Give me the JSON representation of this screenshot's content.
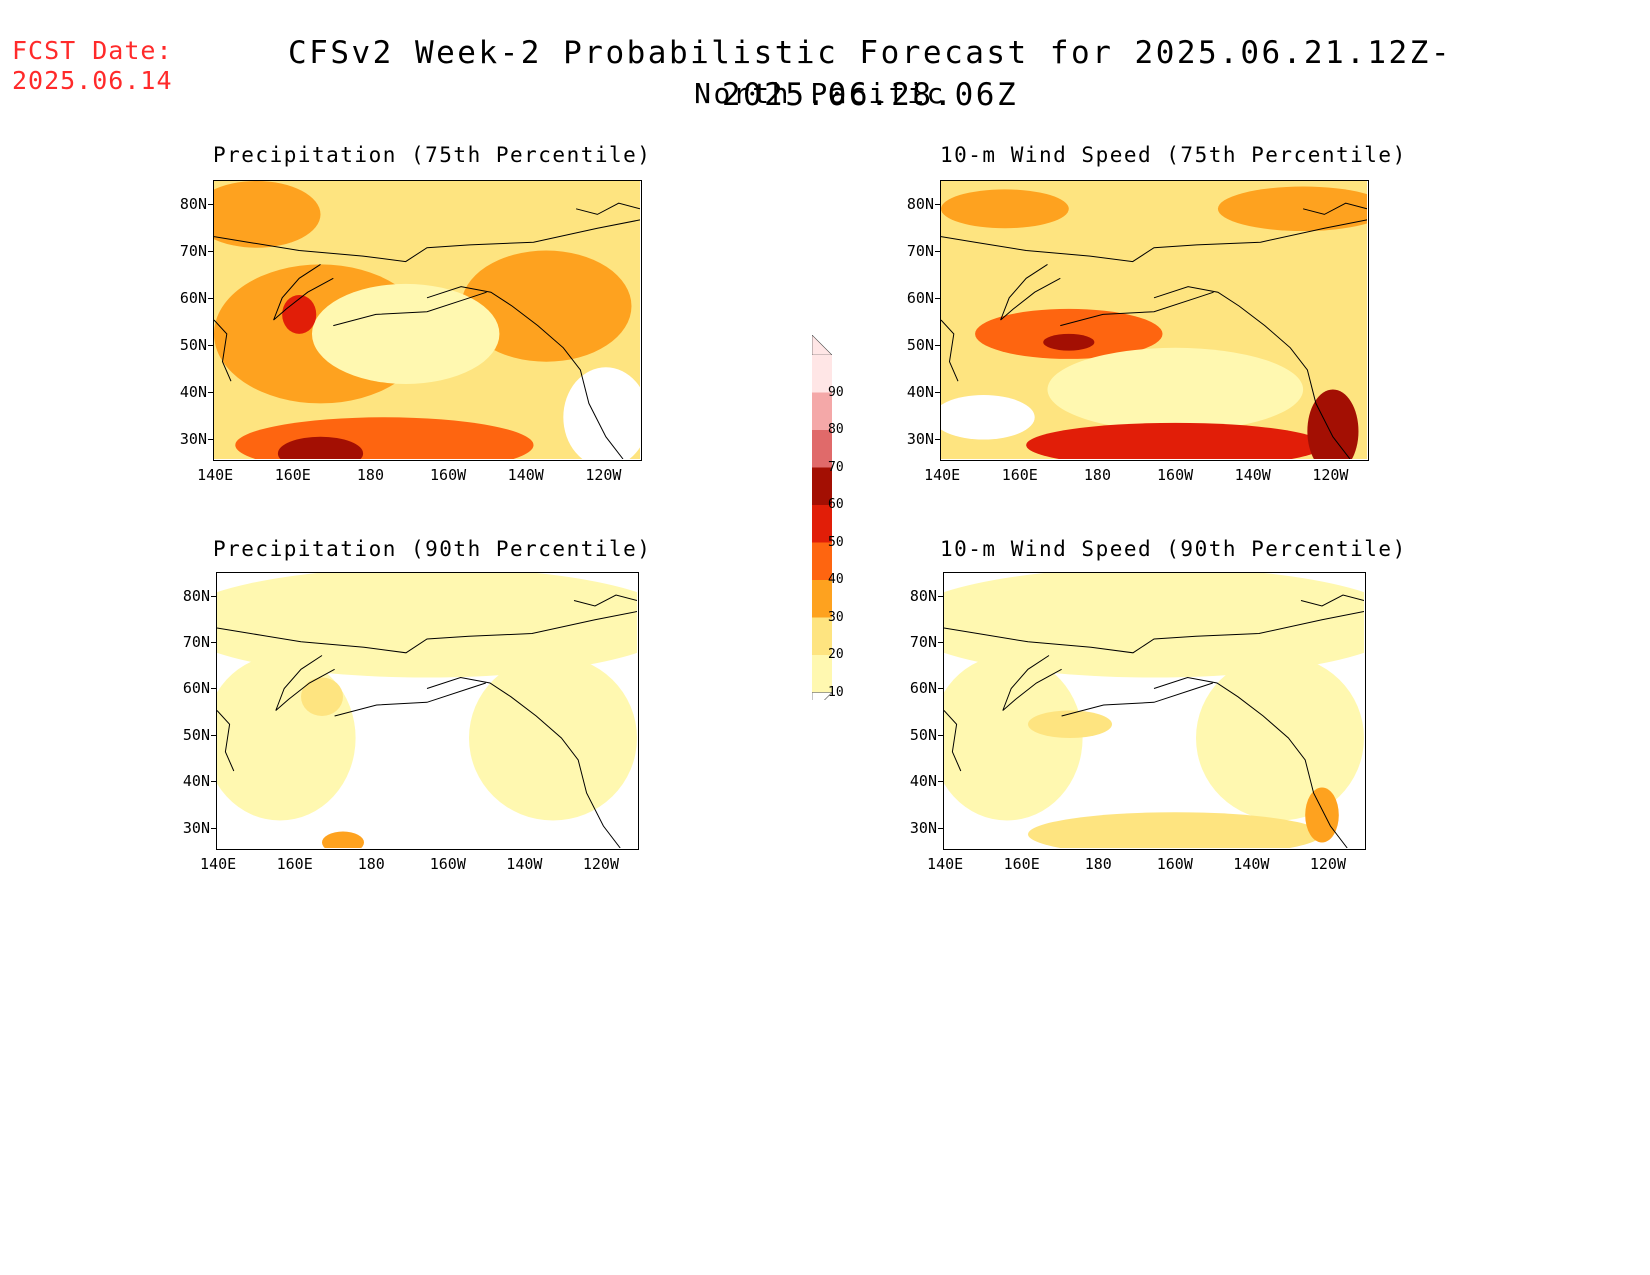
{
  "header": {
    "fcst_label": "FCST Date:",
    "fcst_date": "2025.06.14",
    "title": "CFSv2 Week-2 Probabilistic Forecast for 2025.06.21.12Z-2025.06.28.06Z",
    "subtitle": "North Pacific"
  },
  "axes": {
    "lat_labels": [
      "80N",
      "70N",
      "60N",
      "50N",
      "40N",
      "30N"
    ],
    "lon_labels": [
      "140E",
      "160E",
      "180",
      "160W",
      "140W",
      "120W"
    ]
  },
  "panels": [
    {
      "id": "precip75",
      "title": "Precipitation (75th Percentile)",
      "intensity": "high"
    },
    {
      "id": "wind75",
      "title": "10-m Wind Speed (75th Percentile)",
      "intensity": "high"
    },
    {
      "id": "precip90",
      "title": "Precipitation (90th Percentile)",
      "intensity": "low"
    },
    {
      "id": "wind90",
      "title": "10-m Wind Speed (90th Percentile)",
      "intensity": "low"
    }
  ],
  "colorbar": {
    "levels": [
      "10",
      "20",
      "30",
      "40",
      "50",
      "60",
      "70",
      "80",
      "90"
    ],
    "colors": [
      "#fff8b0",
      "#fee480",
      "#fea21f",
      "#fe6510",
      "#e11e08",
      "#a30f03",
      "#e06a6a",
      "#f4a8a8",
      "#ffe6e6"
    ]
  }
}
